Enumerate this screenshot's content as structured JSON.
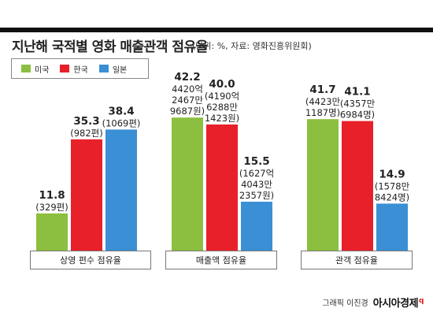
{
  "header": {
    "title": "지난해 국적별 영화 매출관객 점유율",
    "subtitle": "(단위: %, 자료: 영화진흥위원회)"
  },
  "legend": [
    {
      "label": "미국",
      "color": "#8cbf3f"
    },
    {
      "label": "한국",
      "color": "#e8202a"
    },
    {
      "label": "일본",
      "color": "#3b8fd4"
    }
  ],
  "chart_data": {
    "type": "bar",
    "categories": [
      "상영 편수 점유율",
      "매출액 점유율",
      "관객 점유율"
    ],
    "series": [
      {
        "name": "미국",
        "values": [
          11.8,
          42.2,
          41.7
        ]
      },
      {
        "name": "한국",
        "values": [
          35.3,
          40.0,
          41.1
        ]
      },
      {
        "name": "일본",
        "values": [
          38.4,
          15.5,
          14.9
        ]
      }
    ],
    "ylim": [
      0,
      50
    ],
    "grid": false,
    "legend_position": "top-left",
    "data_labels": [
      [
        {
          "value": "11.8",
          "detail": [
            "(329편)"
          ]
        },
        {
          "value": "35.3",
          "detail": [
            "(982편)"
          ]
        },
        {
          "value": "38.4",
          "detail": [
            "(1069편)"
          ]
        }
      ],
      [
        {
          "value": "42.2",
          "detail": [
            "4420억",
            "2467만",
            "9687원)"
          ]
        },
        {
          "value": "40.0",
          "detail": [
            "(4190억",
            "6288만",
            "1423원)"
          ]
        },
        {
          "value": "15.5",
          "detail": [
            "(1627억",
            "4043만",
            "2357원)"
          ]
        }
      ],
      [
        {
          "value": "41.7",
          "detail": [
            "(4423만",
            "1187명)"
          ]
        },
        {
          "value": "41.1",
          "detail": [
            "(4357만",
            "6984명)"
          ]
        },
        {
          "value": "14.9",
          "detail": [
            "(1578만",
            "8424명)"
          ]
        }
      ]
    ]
  },
  "footer": {
    "credit": "그래픽 이진경",
    "brand": "아시아경제",
    "brand_mark": "q"
  }
}
